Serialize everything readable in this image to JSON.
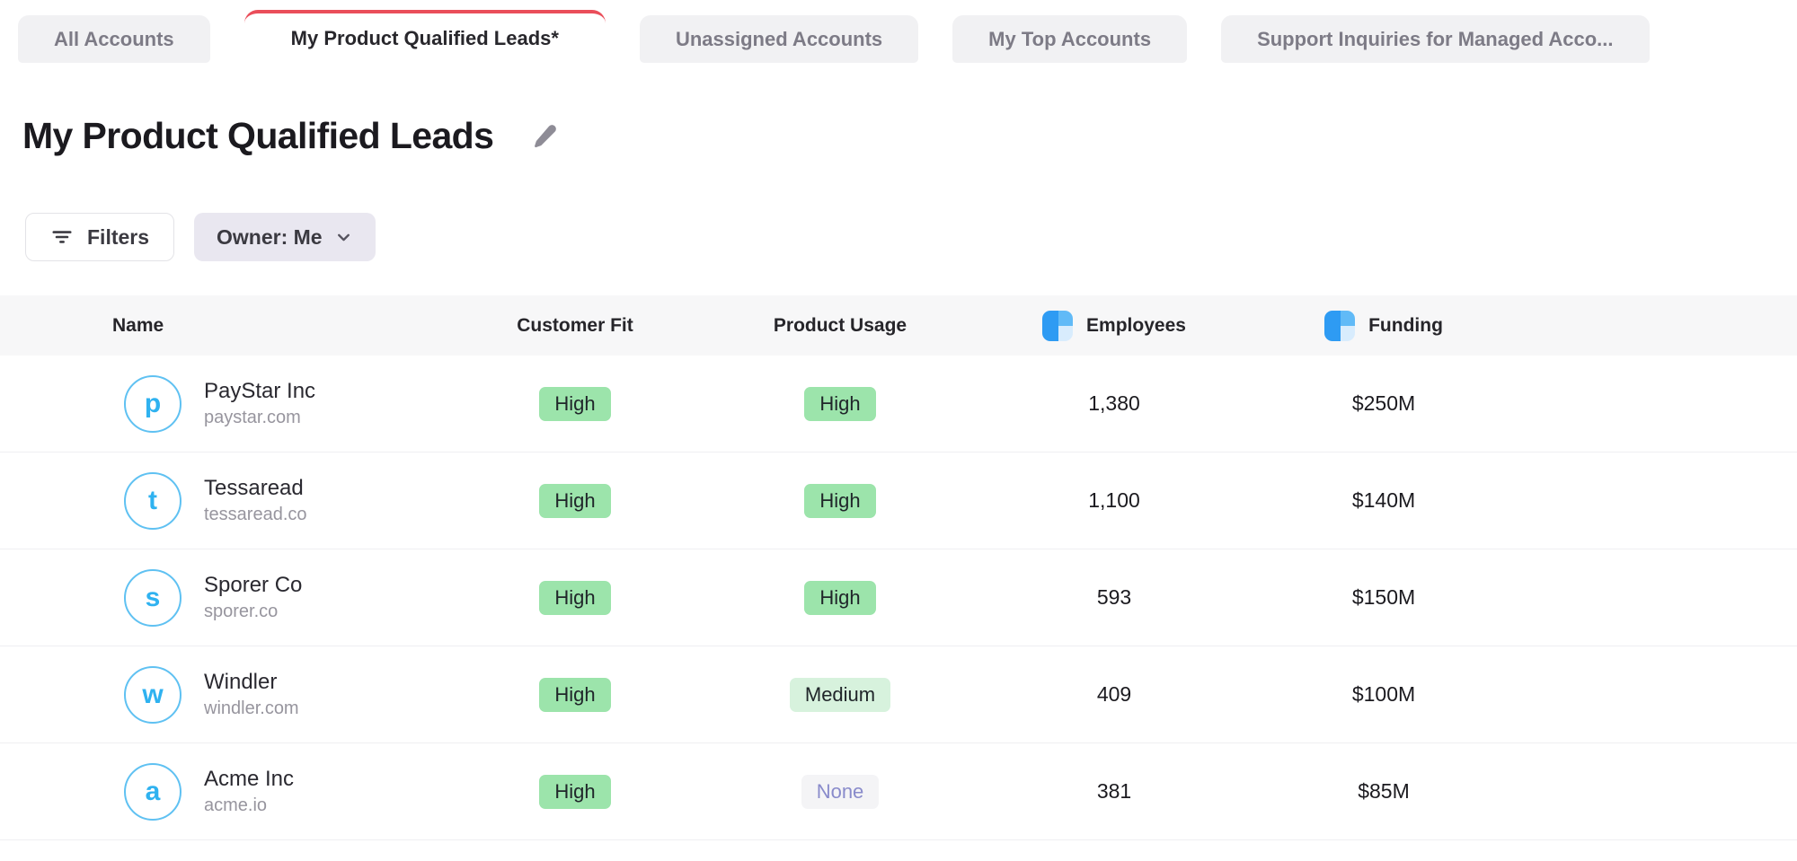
{
  "tabs": [
    {
      "label": "All Accounts",
      "active": false
    },
    {
      "label": "My Product Qualified Leads*",
      "active": true
    },
    {
      "label": "Unassigned Accounts",
      "active": false
    },
    {
      "label": "My Top Accounts",
      "active": false
    },
    {
      "label": "Support Inquiries for Managed Acco...",
      "active": false
    }
  ],
  "page": {
    "title": "My Product Qualified Leads"
  },
  "toolbar": {
    "filters_label": "Filters",
    "owner_filter_label": "Owner: Me"
  },
  "table": {
    "columns": [
      {
        "label": "Name",
        "enriched": false
      },
      {
        "label": "Customer Fit",
        "enriched": false
      },
      {
        "label": "Product Usage",
        "enriched": false
      },
      {
        "label": "Employees",
        "enriched": true
      },
      {
        "label": "Funding",
        "enriched": true
      }
    ],
    "badge_variants": {
      "High": "green",
      "Medium": "green-light",
      "None": "muted"
    },
    "rows": [
      {
        "avatar_letter": "p",
        "name": "PayStar Inc",
        "domain": "paystar.com",
        "customer_fit": "High",
        "product_usage": "High",
        "employees": "1,380",
        "funding": "$250M"
      },
      {
        "avatar_letter": "t",
        "name": "Tessaread",
        "domain": "tessaread.co",
        "customer_fit": "High",
        "product_usage": "High",
        "employees": "1,100",
        "funding": "$140M"
      },
      {
        "avatar_letter": "s",
        "name": "Sporer Co",
        "domain": "sporer.co",
        "customer_fit": "High",
        "product_usage": "High",
        "employees": "593",
        "funding": "$150M"
      },
      {
        "avatar_letter": "w",
        "name": "Windler",
        "domain": "windler.com",
        "customer_fit": "High",
        "product_usage": "Medium",
        "employees": "409",
        "funding": "$100M"
      },
      {
        "avatar_letter": "a",
        "name": "Acme Inc",
        "domain": "acme.io",
        "customer_fit": "High",
        "product_usage": "None",
        "employees": "381",
        "funding": "$85M"
      }
    ]
  },
  "colors": {
    "active_tab_accent": "#EA4E5A",
    "inactive_tab_bg": "#F1F1F3",
    "header_row_bg": "#F7F7F8",
    "badge_green": "#9CE4AB",
    "badge_green_light": "#D7F2DD",
    "badge_muted_bg": "#F4F4F6",
    "badge_muted_text": "#898BCB",
    "avatar_blue": "#2FB2F0",
    "enrichment_blue": "#2E9BF3",
    "owner_button_bg": "#E9E7F0"
  },
  "icons": {
    "title_edit": "pencil-icon",
    "filters": "filter-lines-icon",
    "owner_dropdown": "chevron-down-icon",
    "enriched_column": "enrichment-provider-icon"
  }
}
